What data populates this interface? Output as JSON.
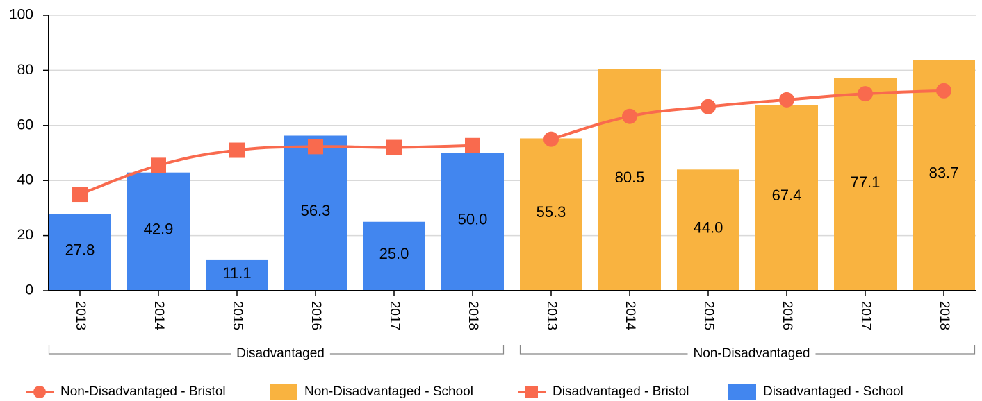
{
  "chart_data": {
    "type": "combo",
    "categories": [
      "2013",
      "2014",
      "2015",
      "2016",
      "2017",
      "2018",
      "2013",
      "2014",
      "2015",
      "2016",
      "2017",
      "2018"
    ],
    "groups": [
      "Disadvantaged",
      "Non-Disadvantaged"
    ],
    "ylim": [
      0,
      100
    ],
    "yticks": [
      0,
      20,
      40,
      60,
      80,
      100
    ],
    "grid": true,
    "legend": "bottom",
    "series": [
      {
        "name": "Non-Disadvantaged - Bristol",
        "type": "line",
        "marker": "circle",
        "color": "#f96a4e",
        "values": [
          null,
          null,
          null,
          null,
          null,
          null,
          55.0,
          63.3,
          66.8,
          69.3,
          71.5,
          72.6
        ]
      },
      {
        "name": "Non-Disadvantaged - School",
        "type": "bar",
        "color": "#f9b340",
        "values": [
          null,
          null,
          null,
          null,
          null,
          null,
          55.3,
          80.5,
          44.0,
          67.4,
          77.1,
          83.7
        ],
        "value_labels": [
          null,
          null,
          null,
          null,
          null,
          null,
          "55.3",
          "80.5",
          "44.0",
          "67.4",
          "77.1",
          "83.7"
        ]
      },
      {
        "name": "Disadvantaged - Bristol",
        "type": "line",
        "marker": "square",
        "color": "#f96a4e",
        "values": [
          35.0,
          45.5,
          51.0,
          52.3,
          52.0,
          52.7,
          null,
          null,
          null,
          null,
          null,
          null
        ]
      },
      {
        "name": "Disadvantaged - School",
        "type": "bar",
        "color": "#4286ef",
        "values": [
          27.8,
          42.9,
          11.1,
          56.3,
          25.0,
          50.0,
          null,
          null,
          null,
          null,
          null,
          null
        ],
        "value_labels": [
          "27.8",
          "42.9",
          "11.1",
          "56.3",
          "25.0",
          "50.0",
          null,
          null,
          null,
          null,
          null,
          null
        ]
      }
    ]
  }
}
